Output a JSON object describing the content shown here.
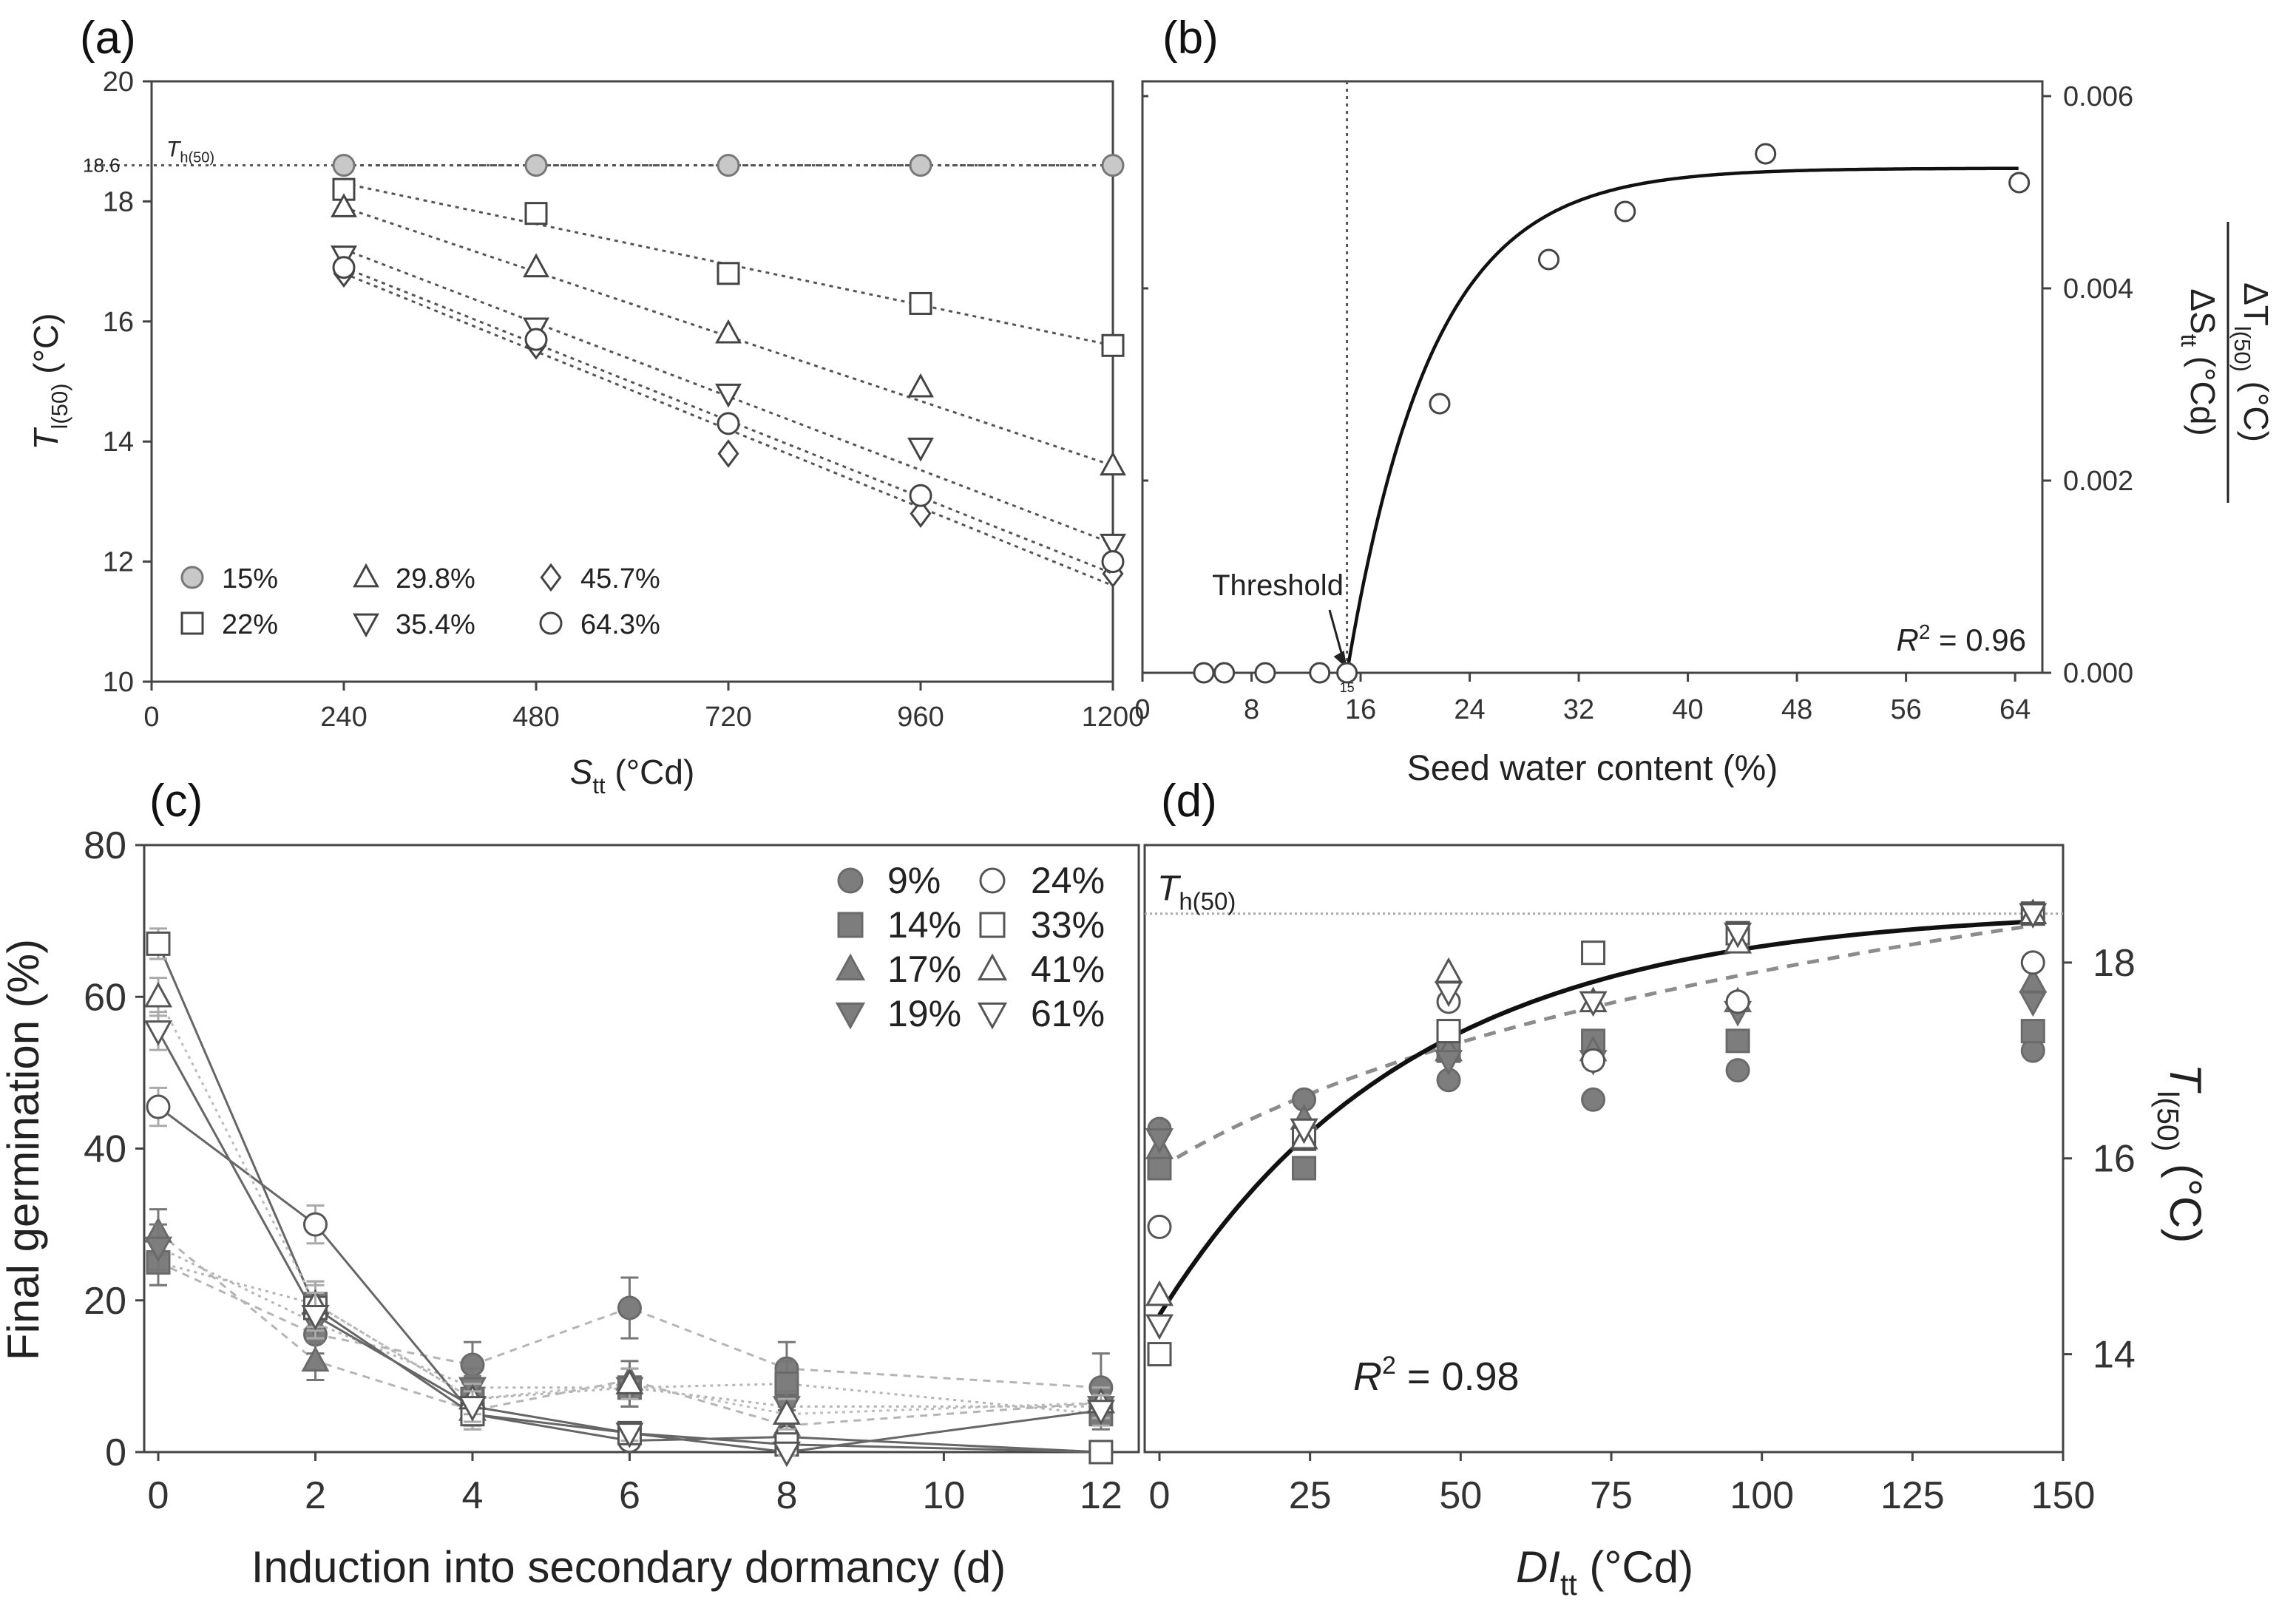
{
  "figure": {
    "panel_labels": [
      "(a)",
      "(b)",
      "(c)",
      "(d)"
    ]
  },
  "chart_data": [
    {
      "id": "a",
      "type": "line",
      "panel_label": "(a)",
      "title": "",
      "xlabel": "S",
      "xlabel_sub": "tt",
      "xlabel_unit": " (°Cd)",
      "ylabel": "T",
      "ylabel_sub": "l(50)",
      "ylabel_unit": " (°C)",
      "xlim": [
        0,
        1200
      ],
      "ylim": [
        10,
        20
      ],
      "xticks": [
        0,
        240,
        480,
        720,
        960,
        1200
      ],
      "yticks": [
        10,
        12,
        14,
        16,
        18,
        20
      ],
      "reference_line": {
        "value": 18.6,
        "label_main": "T",
        "label_sub": "h(50)",
        "tick_label": "18.6"
      },
      "legend_position": "bottom-left",
      "series": [
        {
          "name": "15%",
          "marker": "circle-filled",
          "x": [
            240,
            480,
            720,
            960,
            1200
          ],
          "y": [
            18.6,
            18.6,
            18.6,
            18.6,
            18.6
          ],
          "fit": [
            18.6,
            18.6
          ]
        },
        {
          "name": "22%",
          "marker": "square-open",
          "x": [
            240,
            480,
            720,
            960,
            1200
          ],
          "y": [
            18.2,
            17.8,
            16.8,
            16.3,
            15.6
          ],
          "fit": [
            18.3,
            15.6
          ]
        },
        {
          "name": "29.8%",
          "marker": "triangle-up-open",
          "x": [
            240,
            480,
            720,
            960,
            1200
          ],
          "y": [
            17.9,
            16.9,
            15.8,
            14.9,
            13.6
          ],
          "fit": [
            17.9,
            13.6
          ]
        },
        {
          "name": "35.4%",
          "marker": "triangle-down-open",
          "x": [
            240,
            480,
            720,
            960,
            1200
          ],
          "y": [
            17.1,
            15.9,
            14.8,
            13.9,
            12.3
          ],
          "fit": [
            17.2,
            12.3
          ]
        },
        {
          "name": "45.7%",
          "marker": "diamond-open",
          "x": [
            240,
            480,
            720,
            960,
            1200
          ],
          "y": [
            16.8,
            15.6,
            13.8,
            12.8,
            11.8
          ],
          "fit": [
            16.8,
            11.6
          ]
        },
        {
          "name": "64.3%",
          "marker": "circle-open",
          "x": [
            240,
            480,
            720,
            960,
            1200
          ],
          "y": [
            16.9,
            15.7,
            14.3,
            13.1,
            12.0
          ],
          "fit": [
            16.9,
            11.8
          ]
        }
      ]
    },
    {
      "id": "b",
      "type": "scatter",
      "panel_label": "(b)",
      "title": "",
      "xlabel": "Seed water content (%)",
      "ylabel_num": "ΔT",
      "ylabel_num_sub": "l(50)",
      "ylabel_num_unit": " (°C)",
      "ylabel_den": "ΔS",
      "ylabel_den_sub": "tt",
      "ylabel_den_unit": " (°Cd)",
      "xlim": [
        0,
        66
      ],
      "ylim": [
        0,
        0.006
      ],
      "xticks": [
        0,
        8,
        16,
        24,
        32,
        40,
        48,
        56,
        64
      ],
      "yticks": [
        "0.000",
        "0.002",
        "0.004",
        "0.006"
      ],
      "threshold": {
        "x": 15,
        "label": "Threshold",
        "tick_label": "15"
      },
      "r2_label": "R",
      "r2_value": "= 0.96",
      "points": {
        "x": [
          4.5,
          6,
          9,
          13,
          15,
          21.8,
          29.8,
          35.4,
          45.7,
          64.3
        ],
        "y": [
          0,
          0,
          0,
          0,
          0,
          0.0028,
          0.0043,
          0.0048,
          0.0054,
          0.0051
        ]
      },
      "fit": {
        "model": "y = 0.00525*(1-exp(-(x-15)/6.2)) for x>15",
        "asymptote": 0.00525,
        "x0": 15,
        "rate": 6.2
      }
    },
    {
      "id": "c",
      "type": "line",
      "panel_label": "(c)",
      "title": "",
      "xlabel": "Induction into secondary dormancy (d)",
      "ylabel": "Final germination (%)",
      "xlim": [
        0,
        12.5
      ],
      "ylim": [
        0,
        80
      ],
      "xticks": [
        0,
        2,
        4,
        6,
        8,
        10,
        12
      ],
      "yticks": [
        0,
        20,
        40,
        60,
        80
      ],
      "legend_position": "top-right",
      "x": [
        0,
        2,
        4,
        6,
        8,
        12
      ],
      "series": [
        {
          "name": "9%",
          "marker": "circle-filled",
          "values": [
            25,
            15.5,
            11.5,
            19,
            11,
            8.5
          ],
          "err": [
            3,
            2.5,
            3,
            4,
            3.5,
            4.5
          ]
        },
        {
          "name": "14%",
          "marker": "square-filled",
          "values": [
            25,
            19.5,
            7,
            8.5,
            9,
            5
          ],
          "err": [
            3,
            3,
            3,
            2.5,
            3,
            2
          ]
        },
        {
          "name": "17%",
          "marker": "triangle-up-filled",
          "values": [
            29,
            12,
            5.5,
            9.5,
            3.5,
            6.5
          ],
          "err": [
            3,
            2.5,
            2,
            2.5,
            2,
            2
          ]
        },
        {
          "name": "19%",
          "marker": "triangle-down-filled",
          "values": [
            27,
            17,
            8.5,
            8.5,
            6,
            6
          ],
          "err": [
            3,
            2.5,
            2.5,
            2.5,
            2,
            2
          ]
        },
        {
          "name": "24%",
          "marker": "circle-open",
          "values": [
            45.5,
            30,
            5,
            1.5,
            2,
            0
          ],
          "err": [
            2.5,
            2.5,
            2,
            1,
            1,
            0.5
          ]
        },
        {
          "name": "33%",
          "marker": "square-open",
          "values": [
            67,
            19,
            5,
            2.5,
            1,
            0
          ],
          "err": [
            2,
            3,
            2,
            1,
            1,
            0.5
          ]
        },
        {
          "name": "41%",
          "marker": "triangle-up-open",
          "values": [
            60,
            19.5,
            7,
            9,
            5,
            6.5
          ],
          "err": [
            2.5,
            3,
            2,
            2,
            2,
            2
          ]
        },
        {
          "name": "61%",
          "marker": "triangle-down-open",
          "values": [
            55.5,
            18,
            6,
            2.5,
            0,
            5.5
          ],
          "err": [
            2.5,
            3,
            2,
            1,
            0.5,
            2
          ]
        }
      ]
    },
    {
      "id": "d",
      "type": "scatter",
      "panel_label": "(d)",
      "title": "",
      "xlabel": "DI",
      "xlabel_sub": "tt",
      "xlabel_unit": " (°Cd)",
      "ylabel": "T",
      "ylabel_sub": "l(50)",
      "ylabel_unit": " (°C)",
      "xlim": [
        0,
        150
      ],
      "ylim": [
        13,
        19.2
      ],
      "xticks": [
        0,
        25,
        50,
        75,
        100,
        125,
        150
      ],
      "yticks": [
        14,
        16,
        18
      ],
      "reference_line": {
        "value": 18.5,
        "label_main": "T",
        "label_sub": "h(50)"
      },
      "r2_label": "R",
      "r2_value": "= 0.98",
      "x": [
        0,
        24,
        48,
        72,
        96,
        145
      ],
      "series": [
        {
          "name": "9%",
          "marker": "circle-filled",
          "values": [
            16.3,
            16.6,
            16.8,
            16.6,
            16.9,
            17.1
          ]
        },
        {
          "name": "14%",
          "marker": "square-filled",
          "values": [
            15.9,
            15.9,
            17.1,
            17.2,
            17.2,
            17.3
          ]
        },
        {
          "name": "17%",
          "marker": "triangle-up-filled",
          "values": [
            16.1,
            16.4,
            17.1,
            17.1,
            17.6,
            17.8
          ]
        },
        {
          "name": "19%",
          "marker": "triangle-down-filled",
          "values": [
            16.2,
            16.3,
            17.0,
            17.0,
            17.5,
            17.6
          ]
        },
        {
          "name": "24%",
          "marker": "circle-open",
          "values": [
            15.3,
            16.2,
            17.6,
            17.0,
            17.6,
            18.0
          ]
        },
        {
          "name": "33%",
          "marker": "square-open",
          "values": [
            14.0,
            16.2,
            17.3,
            18.1,
            18.3,
            18.5
          ]
        },
        {
          "name": "41%",
          "marker": "triangle-up-open",
          "values": [
            14.6,
            16.2,
            17.9,
            17.6,
            18.2,
            18.5
          ]
        },
        {
          "name": "61%",
          "marker": "triangle-down-open",
          "values": [
            14.3,
            16.3,
            17.7,
            17.6,
            18.3,
            18.5
          ]
        }
      ],
      "fits": [
        {
          "name": "solid",
          "style": "solid",
          "model": "y = 18.55 - 4.15*exp(-x/42)",
          "a": 18.55,
          "b": 4.15,
          "tau": 42
        },
        {
          "name": "dashed",
          "style": "dashed",
          "model": "y = 15.9 + 1.72*ln(1+x/45)",
          "a": 15.9,
          "b": 1.72,
          "c": 45
        }
      ]
    }
  ]
}
